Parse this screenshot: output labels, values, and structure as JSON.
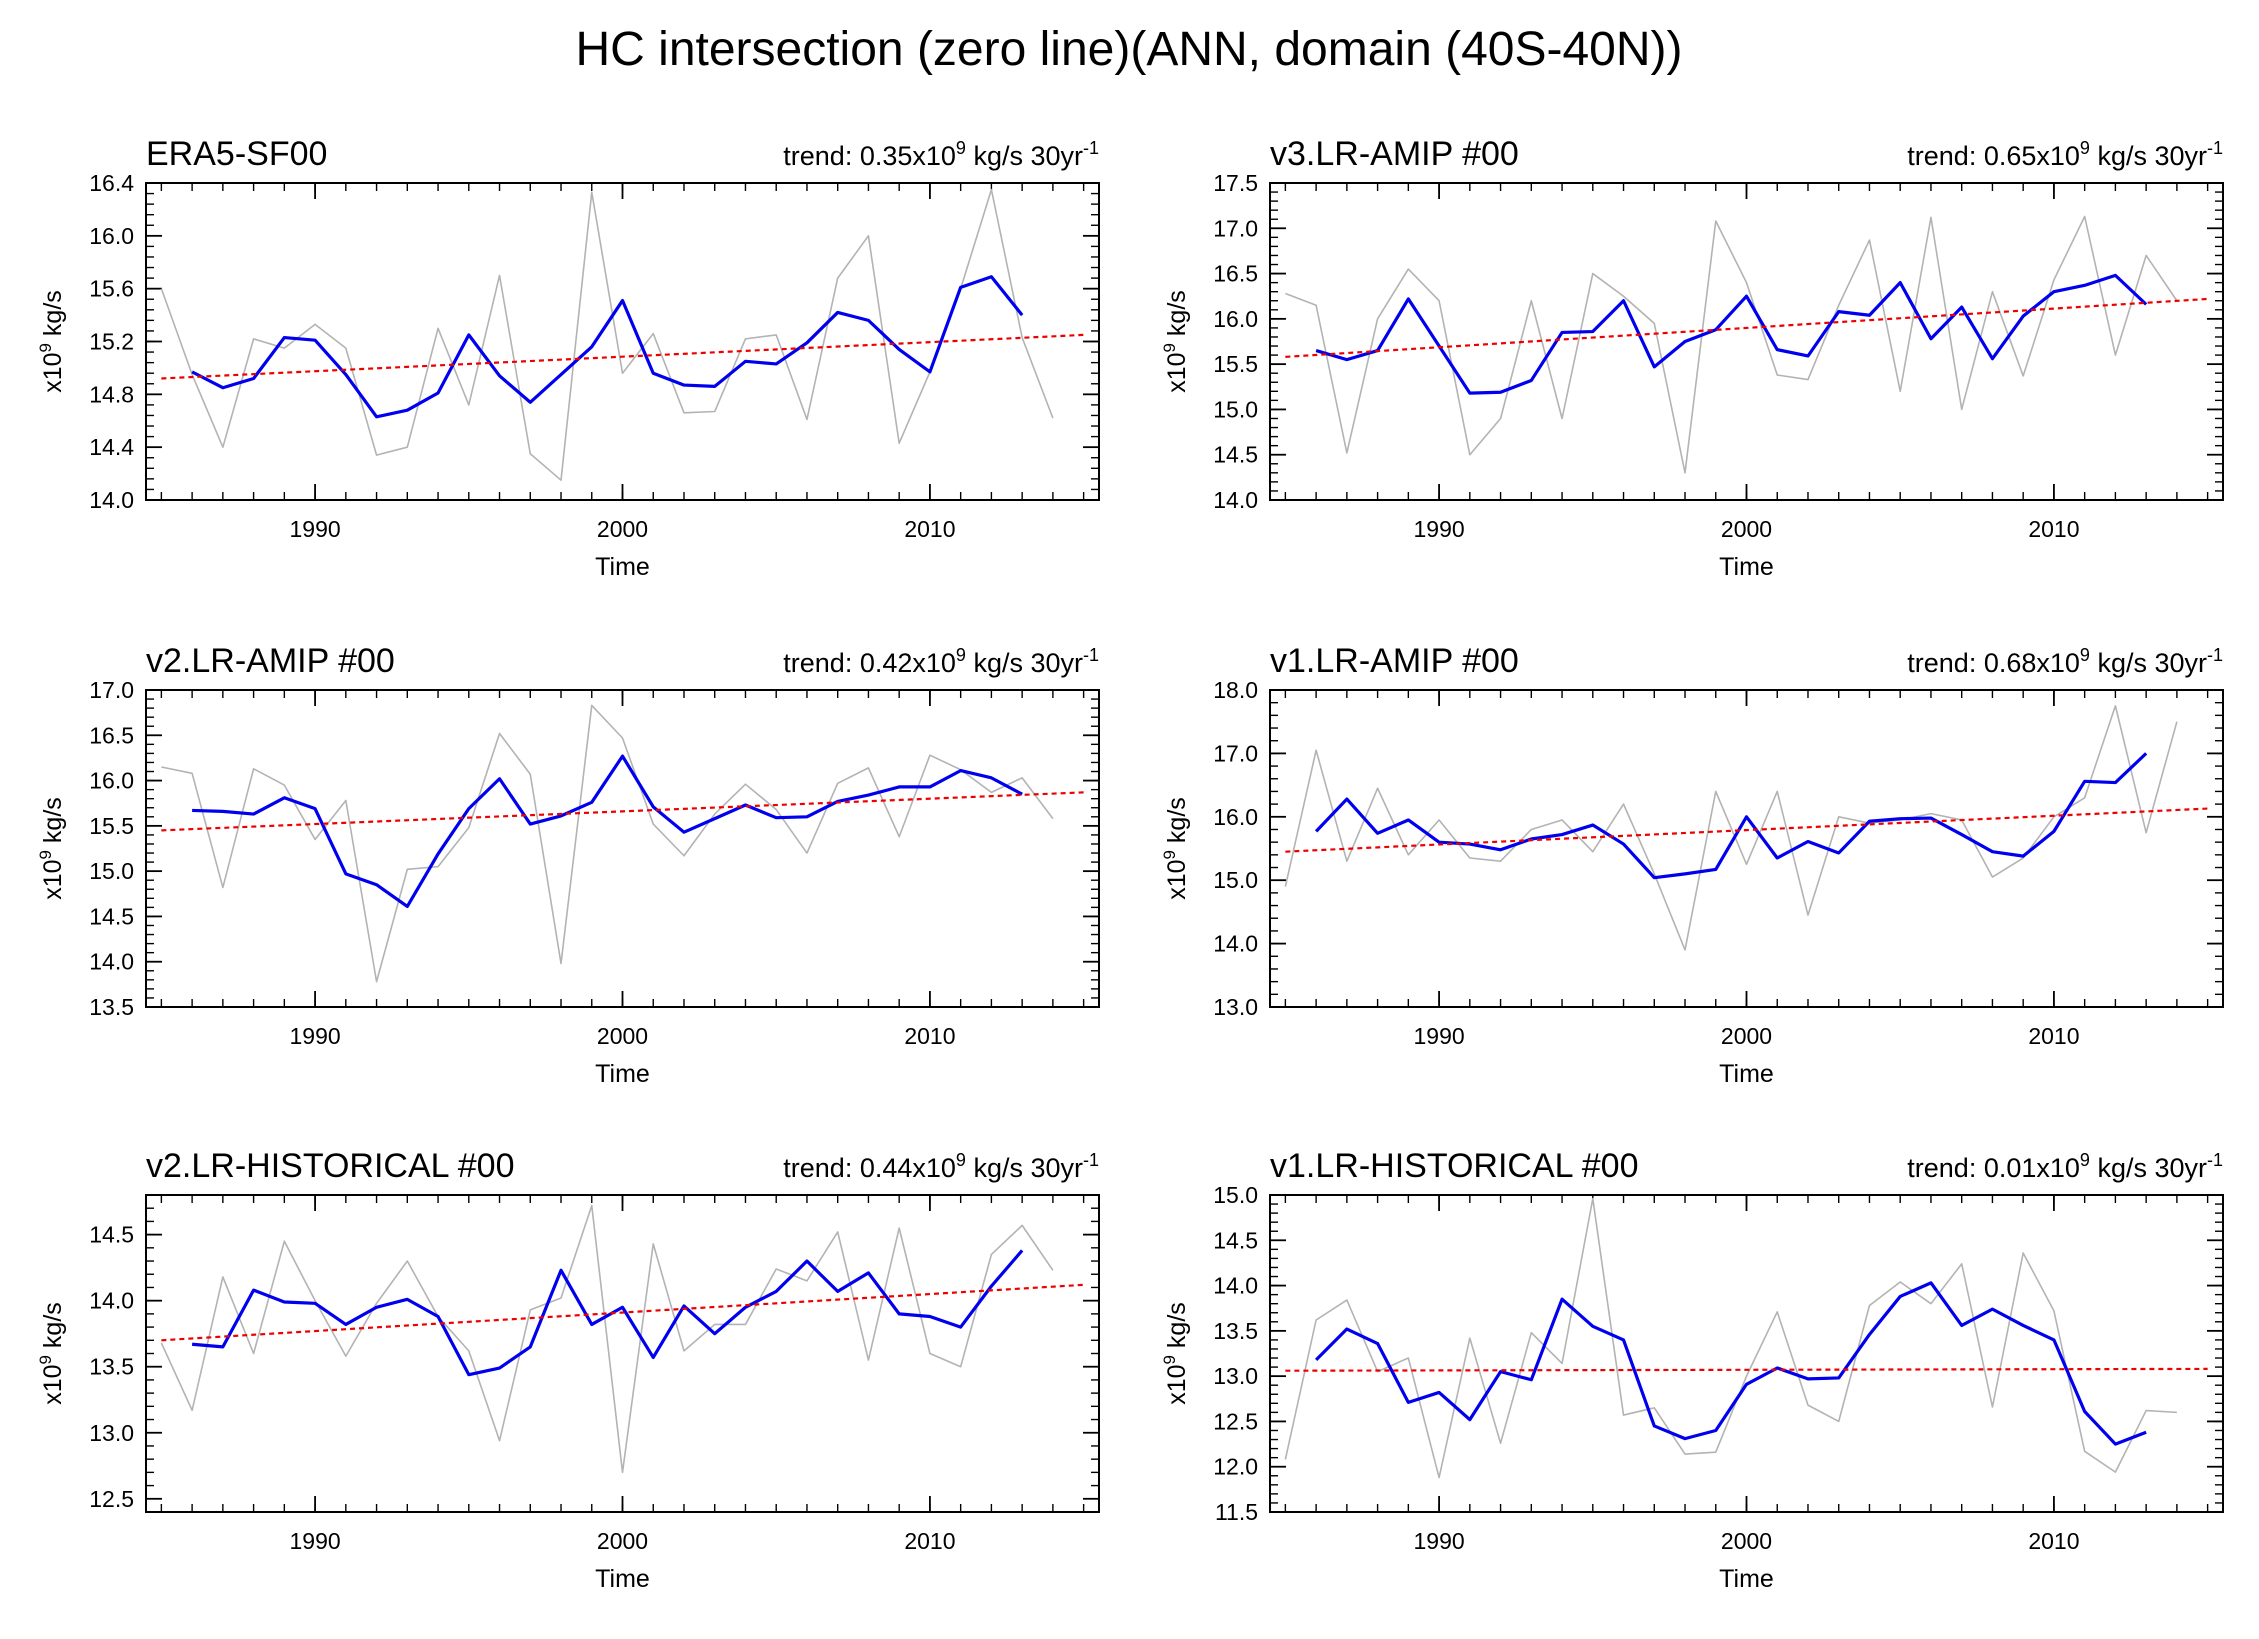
{
  "figure": {
    "title": "HC intersection (zero line)(ANN, domain (40S-40N))"
  },
  "colors": {
    "raw": "#b3b3b3",
    "smooth": "#0000ee",
    "trend": "#ee0000",
    "axes": "#000000"
  },
  "chart_data": [
    {
      "type": "line",
      "title": "ERA5-SF00",
      "trend_prefix": "trend: 0.35x10",
      "trend_suffix": " kg/s 30yr",
      "xlabel": "Time",
      "ylabel_prefix": "x10",
      "ylabel_suffix": " kg/s",
      "xlim": [
        1984.5,
        2015.5
      ],
      "ylim": [
        14.0,
        16.4
      ],
      "yticks": [
        14.0,
        14.4,
        14.8,
        15.2,
        15.6,
        16.0,
        16.4
      ],
      "ytick_labels": [
        "14.0",
        "14.4",
        "14.8",
        "15.2",
        "15.6",
        "16.0",
        "16.4"
      ],
      "xticks": [
        1990,
        2000,
        2010
      ],
      "xtick_labels": [
        "1990",
        "2000",
        "2010"
      ],
      "series": [
        {
          "name": "annual",
          "x_start": 1985,
          "values": [
            15.6,
            14.95,
            14.4,
            15.22,
            15.15,
            15.33,
            15.15,
            14.34,
            14.4,
            15.3,
            14.72,
            15.7,
            14.35,
            14.15,
            16.33,
            14.96,
            15.26,
            14.66,
            14.67,
            15.22,
            15.25,
            14.61,
            15.68,
            16.0,
            14.43,
            14.97,
            15.6,
            16.35,
            15.23,
            14.62
          ]
        },
        {
          "name": "smoothed",
          "x_start": 1986,
          "values": [
            14.97,
            14.85,
            14.92,
            15.23,
            15.21,
            14.95,
            14.63,
            14.68,
            14.81,
            15.25,
            14.94,
            14.74,
            14.95,
            15.16,
            15.51,
            14.96,
            14.87,
            14.86,
            15.05,
            15.03,
            15.19,
            15.42,
            15.36,
            15.14,
            14.97,
            15.61,
            15.69,
            15.4
          ]
        },
        {
          "name": "trend",
          "x": [
            1985,
            2015
          ],
          "values": [
            14.92,
            15.25
          ]
        }
      ]
    },
    {
      "type": "line",
      "title": "v3.LR-AMIP  #00",
      "trend_prefix": "trend: 0.65x10",
      "trend_suffix": " kg/s 30yr",
      "xlabel": "Time",
      "ylabel_prefix": "x10",
      "ylabel_suffix": " kg/s",
      "xlim": [
        1984.5,
        2015.5
      ],
      "ylim": [
        14.0,
        17.5
      ],
      "yticks": [
        14.0,
        14.5,
        15.0,
        15.5,
        16.0,
        16.5,
        17.0,
        17.5
      ],
      "ytick_labels": [
        "14.0",
        "14.5",
        "15.0",
        "15.5",
        "16.0",
        "16.5",
        "17.0",
        "17.5"
      ],
      "xticks": [
        1990,
        2000,
        2010
      ],
      "xtick_labels": [
        "1990",
        "2000",
        "2010"
      ],
      "series": [
        {
          "name": "annual",
          "x_start": 1985,
          "values": [
            16.28,
            16.15,
            14.52,
            16.0,
            16.55,
            16.2,
            14.5,
            14.9,
            16.2,
            14.9,
            16.5,
            16.25,
            15.95,
            14.3,
            17.08,
            16.4,
            15.38,
            15.33,
            16.15,
            16.87,
            15.2,
            17.12,
            15.0,
            16.3,
            15.37,
            16.43,
            17.13,
            15.6,
            16.7,
            16.2
          ]
        },
        {
          "name": "smoothed",
          "x_start": 1986,
          "values": [
            15.65,
            15.55,
            15.65,
            16.22,
            15.7,
            15.18,
            15.19,
            15.32,
            15.85,
            15.86,
            16.2,
            15.47,
            15.75,
            15.88,
            16.25,
            15.66,
            15.59,
            16.08,
            16.04,
            16.4,
            15.78,
            16.13,
            15.56,
            16.03,
            16.3,
            16.37,
            16.48,
            16.16
          ]
        },
        {
          "name": "trend",
          "x": [
            1985,
            2015
          ],
          "values": [
            15.58,
            16.22
          ]
        }
      ]
    },
    {
      "type": "line",
      "title": "v2.LR-AMIP  #00",
      "trend_prefix": "trend: 0.42x10",
      "trend_suffix": " kg/s 30yr",
      "xlabel": "Time",
      "ylabel_prefix": "x10",
      "ylabel_suffix": " kg/s",
      "xlim": [
        1984.5,
        2015.5
      ],
      "ylim": [
        13.5,
        17.0
      ],
      "yticks": [
        13.5,
        14.0,
        14.5,
        15.0,
        15.5,
        16.0,
        16.5,
        17.0
      ],
      "ytick_labels": [
        "13.5",
        "14.0",
        "14.5",
        "15.0",
        "15.5",
        "16.0",
        "16.5",
        "17.0"
      ],
      "xticks": [
        1990,
        2000,
        2010
      ],
      "xtick_labels": [
        "1990",
        "2000",
        "2010"
      ],
      "series": [
        {
          "name": "annual",
          "x_start": 1985,
          "values": [
            16.15,
            16.08,
            14.82,
            16.13,
            15.95,
            15.35,
            15.78,
            13.78,
            15.02,
            15.05,
            15.48,
            16.52,
            16.07,
            13.98,
            16.83,
            16.47,
            15.52,
            15.17,
            15.63,
            15.96,
            15.68,
            15.2,
            15.97,
            16.14,
            15.38,
            16.28,
            16.12,
            15.87,
            16.03,
            15.58
          ]
        },
        {
          "name": "smoothed",
          "x_start": 1986,
          "values": [
            15.67,
            15.66,
            15.63,
            15.81,
            15.69,
            14.97,
            14.85,
            14.61,
            15.19,
            15.69,
            16.02,
            15.52,
            15.61,
            15.76,
            16.27,
            15.71,
            15.43,
            15.58,
            15.73,
            15.59,
            15.6,
            15.77,
            15.84,
            15.93,
            15.93,
            16.11,
            16.03,
            15.85
          ]
        },
        {
          "name": "trend",
          "x": [
            1985,
            2015
          ],
          "values": [
            15.45,
            15.87
          ]
        }
      ]
    },
    {
      "type": "line",
      "title": "v1.LR-AMIP  #00",
      "trend_prefix": "trend: 0.68x10",
      "trend_suffix": " kg/s 30yr",
      "xlabel": "Time",
      "ylabel_prefix": "x10",
      "ylabel_suffix": " kg/s",
      "xlim": [
        1984.5,
        2015.5
      ],
      "ylim": [
        13.0,
        18.0
      ],
      "yticks": [
        13.0,
        14.0,
        15.0,
        16.0,
        17.0,
        18.0
      ],
      "ytick_labels": [
        "13.0",
        "14.0",
        "15.0",
        "16.0",
        "17.0",
        "18.0"
      ],
      "xticks": [
        1990,
        2000,
        2010
      ],
      "xtick_labels": [
        "1990",
        "2000",
        "2010"
      ],
      "series": [
        {
          "name": "annual",
          "x_start": 1985,
          "values": [
            14.9,
            17.05,
            15.3,
            16.45,
            15.4,
            15.95,
            15.35,
            15.3,
            15.8,
            15.95,
            15.45,
            16.2,
            15.1,
            13.9,
            16.4,
            15.25,
            16.4,
            14.45,
            16.0,
            15.9,
            15.95,
            16.05,
            15.95,
            15.05,
            15.35,
            16.0,
            16.3,
            17.75,
            15.75,
            17.5
          ]
        },
        {
          "name": "smoothed",
          "x_start": 1986,
          "values": [
            15.77,
            16.28,
            15.74,
            15.95,
            15.6,
            15.57,
            15.48,
            15.65,
            15.72,
            15.87,
            15.57,
            15.04,
            15.1,
            15.17,
            16.0,
            15.35,
            15.61,
            15.43,
            15.93,
            15.97,
            15.98,
            15.72,
            15.45,
            15.38,
            15.77,
            16.56,
            16.54,
            17.0
          ]
        },
        {
          "name": "trend",
          "x": [
            1985,
            2015
          ],
          "values": [
            15.45,
            16.13
          ]
        }
      ]
    },
    {
      "type": "line",
      "title": "v2.LR-HISTORICAL  #00",
      "trend_prefix": "trend: 0.44x10",
      "trend_suffix": " kg/s 30yr",
      "xlabel": "Time",
      "ylabel_prefix": "x10",
      "ylabel_suffix": " kg/s",
      "xlim": [
        1984.5,
        2015.5
      ],
      "ylim": [
        12.4,
        14.8
      ],
      "yticks": [
        12.5,
        13.0,
        13.5,
        14.0,
        14.5
      ],
      "ytick_labels": [
        "12.5",
        "13.0",
        "13.5",
        "14.0",
        "14.5"
      ],
      "xticks": [
        1990,
        2000,
        2010
      ],
      "xtick_labels": [
        "1990",
        "2000",
        "2010"
      ],
      "series": [
        {
          "name": "annual",
          "x_start": 1985,
          "values": [
            13.68,
            13.17,
            14.18,
            13.6,
            14.45,
            14.0,
            13.58,
            13.98,
            14.3,
            13.88,
            13.62,
            12.94,
            13.93,
            14.02,
            14.72,
            12.7,
            14.43,
            13.62,
            13.82,
            13.82,
            14.24,
            14.15,
            14.52,
            13.55,
            14.55,
            13.6,
            13.5,
            14.35,
            14.57,
            14.23
          ]
        },
        {
          "name": "smoothed",
          "x_start": 1986,
          "values": [
            13.67,
            13.65,
            14.08,
            13.99,
            13.98,
            13.82,
            13.95,
            14.01,
            13.88,
            13.44,
            13.49,
            13.65,
            14.23,
            13.82,
            13.95,
            13.57,
            13.96,
            13.75,
            13.95,
            14.07,
            14.3,
            14.07,
            14.21,
            13.9,
            13.88,
            13.8,
            14.11,
            14.38
          ]
        },
        {
          "name": "trend",
          "x": [
            1985,
            2015
          ],
          "values": [
            13.7,
            14.12
          ]
        }
      ]
    },
    {
      "type": "line",
      "title": "v1.LR-HISTORICAL  #00",
      "trend_prefix": "trend: 0.01x10",
      "trend_suffix": " kg/s 30yr",
      "xlabel": "Time",
      "ylabel_prefix": "x10",
      "ylabel_suffix": " kg/s",
      "xlim": [
        1984.5,
        2015.5
      ],
      "ylim": [
        11.5,
        15.0
      ],
      "yticks": [
        11.5,
        12.0,
        12.5,
        13.0,
        13.5,
        14.0,
        14.5,
        15.0
      ],
      "ytick_labels": [
        "11.5",
        "12.0",
        "12.5",
        "13.0",
        "13.5",
        "14.0",
        "14.5",
        "15.0"
      ],
      "xticks": [
        1990,
        2000,
        2010
      ],
      "xtick_labels": [
        "1990",
        "2000",
        "2010"
      ],
      "series": [
        {
          "name": "annual",
          "x_start": 1985,
          "values": [
            12.08,
            13.62,
            13.84,
            13.05,
            13.2,
            11.88,
            13.42,
            12.26,
            13.48,
            13.14,
            14.96,
            12.57,
            12.65,
            12.14,
            12.16,
            13.0,
            13.71,
            12.68,
            12.5,
            13.78,
            14.04,
            13.8,
            14.24,
            12.66,
            14.36,
            13.72,
            12.17,
            11.94,
            12.62,
            12.6
          ]
        },
        {
          "name": "smoothed",
          "x_start": 1986,
          "values": [
            13.18,
            13.52,
            13.36,
            12.71,
            12.82,
            12.52,
            13.05,
            12.96,
            13.85,
            13.55,
            13.4,
            12.45,
            12.31,
            12.4,
            12.91,
            13.09,
            12.97,
            12.98,
            13.46,
            13.88,
            14.03,
            13.56,
            13.74,
            13.56,
            13.4,
            12.61,
            12.25,
            12.38
          ]
        },
        {
          "name": "trend",
          "x": [
            1985,
            2015
          ],
          "values": [
            13.06,
            13.08
          ]
        }
      ]
    }
  ]
}
